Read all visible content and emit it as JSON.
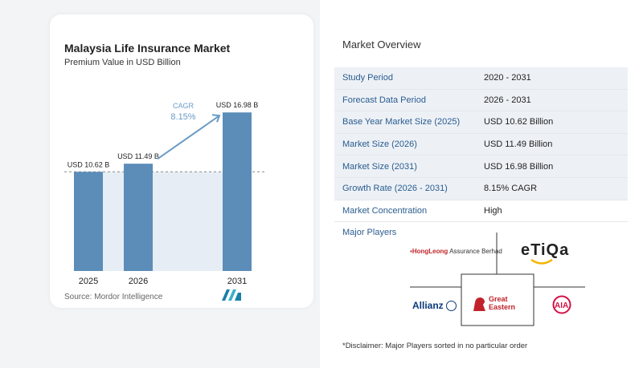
{
  "chart_data": {
    "type": "bar",
    "title": "Malaysia Life Insurance Market",
    "subtitle": "Premium Value in USD Billion",
    "categories": [
      "2025",
      "2026",
      "2031"
    ],
    "values": [
      10.62,
      11.49,
      16.98
    ],
    "data_labels": [
      "USD 10.62 B",
      "USD 11.49 B",
      "USD 16.98 B"
    ],
    "cagr_label": "CAGR",
    "cagr_value": "8.15%",
    "bar_color": "#5b8db8",
    "shade_color": "#e6edf5",
    "ylim": [
      0,
      17
    ]
  },
  "source": "Source: Mordor Intelligence",
  "overview": {
    "title": "Market Overview",
    "rows": [
      {
        "key": "Study Period",
        "value": "2020 - 2031"
      },
      {
        "key": "Forecast Data Period",
        "value": "2026 - 2031"
      },
      {
        "key": "Base Year Market Size (2025)",
        "value": "USD 10.62 Billion"
      },
      {
        "key": "Market Size (2026)",
        "value": "USD 11.49 Billion"
      },
      {
        "key": "Market Size (2031)",
        "value": "USD 16.98 Billion"
      },
      {
        "key": "Growth Rate (2026 - 2031)",
        "value": "8.15% CAGR"
      },
      {
        "key": "Market Concentration",
        "value": "High"
      }
    ],
    "players_title": "Major Players",
    "players": {
      "hongleong": "HongLeong",
      "hongleong_sub": "Assurance Berhad",
      "etiqa": "eTiQa",
      "allianz": "Allianz",
      "great_eastern_1": "Great",
      "great_eastern_2": "Eastern",
      "aia": "AIA"
    }
  },
  "disclaimer": "*Disclaimer: Major Players sorted in no particular order"
}
